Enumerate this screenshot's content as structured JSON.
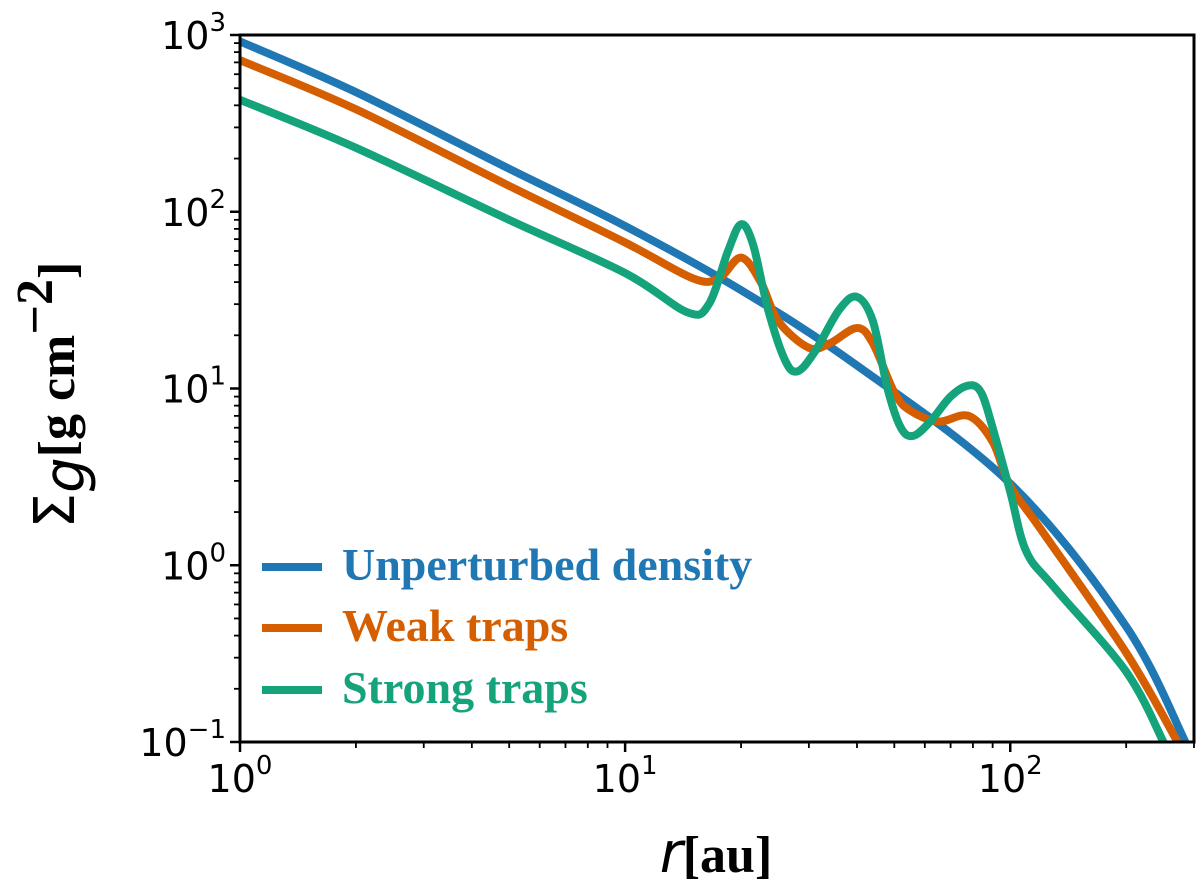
{
  "chart_data": {
    "type": "line",
    "xscale": "log",
    "yscale": "log",
    "xlim": [
      1,
      300
    ],
    "ylim": [
      0.1,
      1000
    ],
    "xlabel": {
      "symbol": "r",
      "unit": "[au]"
    },
    "ylabel": {
      "symbol": "Σ",
      "subscript": "g",
      "unit": "[g cm",
      "unit_exp": "−2",
      "unit_close": "]"
    },
    "x_ticks": [
      {
        "base": "10",
        "exp": "0",
        "value": 1
      },
      {
        "base": "10",
        "exp": "1",
        "value": 10
      },
      {
        "base": "10",
        "exp": "2",
        "value": 100
      }
    ],
    "y_ticks": [
      {
        "base": "10",
        "exp": "−1",
        "value": 0.1
      },
      {
        "base": "10",
        "exp": "0",
        "value": 1
      },
      {
        "base": "10",
        "exp": "1",
        "value": 10
      },
      {
        "base": "10",
        "exp": "2",
        "value": 100
      },
      {
        "base": "10",
        "exp": "3",
        "value": 1000
      }
    ],
    "legend_position": "lower-left",
    "series": [
      {
        "name": "Unperturbed density",
        "color": "#1f77b4",
        "x": [
          1,
          2,
          5,
          10,
          20,
          40,
          100,
          200,
          285
        ],
        "y": [
          920,
          475,
          175,
          83,
          36,
          13.5,
          2.9,
          0.45,
          0.1
        ]
      },
      {
        "name": "Weak traps",
        "color": "#d55e00",
        "x": [
          1,
          2,
          5,
          10,
          15,
          17.5,
          20,
          22.5,
          25,
          30,
          34,
          40,
          44,
          50,
          55,
          65,
          78,
          90,
          100,
          120,
          200,
          272
        ],
        "y": [
          720,
          380,
          140,
          67,
          42,
          42,
          55,
          40,
          24,
          17,
          18,
          22,
          18,
          9.5,
          7.5,
          6.5,
          7,
          5,
          2.8,
          1.6,
          0.32,
          0.1
        ]
      },
      {
        "name": "Strong traps",
        "color": "#14a37a",
        "x": [
          1,
          2,
          5,
          10,
          14.5,
          16.5,
          18.5,
          20,
          21.5,
          23.5,
          26,
          28,
          31,
          36,
          40,
          44,
          48,
          52,
          56,
          62,
          70,
          78,
          84,
          90,
          100,
          110,
          130,
          200,
          250
        ],
        "y": [
          430,
          230,
          90,
          45,
          27,
          30,
          60,
          85,
          65,
          28,
          14.5,
          12.5,
          16,
          28,
          33,
          24,
          10,
          6,
          5.4,
          6.5,
          9,
          10.4,
          9.5,
          6,
          2.6,
          1.2,
          0.75,
          0.25,
          0.1
        ]
      }
    ]
  }
}
